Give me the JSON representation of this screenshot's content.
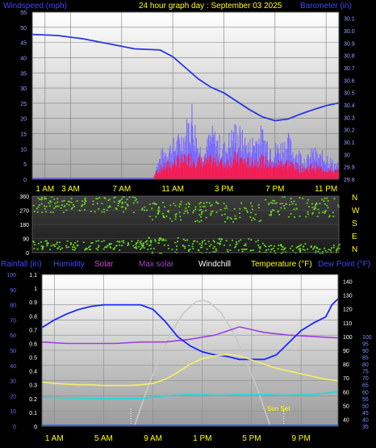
{
  "header": {
    "left_label": "Windspeed (mph)",
    "center_label": "24 hour graph day : September 03 2025",
    "right_label": "Barometer (in)"
  },
  "panel_top": {
    "x_ticks": [
      "1 AM",
      "3 AM",
      "7 AM",
      "11 AM",
      "3 PM",
      "7 PM",
      "11 PM"
    ],
    "x_tick_hours": [
      1,
      3,
      7,
      11,
      15,
      19,
      23
    ],
    "wind_ticks": [
      0,
      5,
      10,
      15,
      20,
      25,
      30,
      35,
      40,
      45,
      50,
      55
    ],
    "baro_ticks": [
      "29.8",
      "29.9",
      "30",
      "30.1",
      "30.2",
      "30.3",
      "30.4",
      "30.5",
      "30.6",
      "30.7",
      "30.8",
      "30.9",
      "30.0",
      "30.1"
    ]
  },
  "panel_dir": {
    "deg_ticks": [
      0,
      90,
      180,
      270,
      360
    ],
    "compass": [
      "N",
      "W",
      "S",
      "E",
      "N"
    ]
  },
  "panel_bottom": {
    "legend": {
      "rain": "Rainfall (in)",
      "humidity": "Humidity",
      "solar": "Solar",
      "max_solar": "Max solar",
      "windchill": "Windchill",
      "temperature": "Temperature (°F)",
      "dew_point": "Dew Point (°F)"
    },
    "x_ticks": [
      "1 AM",
      "5 AM",
      "9 AM",
      "1 PM",
      "5 PM",
      "9 PM"
    ],
    "x_tick_hours": [
      1,
      5,
      9,
      13,
      17,
      21
    ],
    "humidity_ticks": [
      0,
      10,
      20,
      30,
      40,
      50,
      60,
      70,
      80,
      90,
      100
    ],
    "rain_ticks": [
      "0",
      "0.1",
      "0.2",
      "0.3",
      "0.4",
      "0.5",
      "0.6",
      "0.7",
      "0.8",
      "0.9",
      "1",
      "1.1"
    ],
    "temp_ticks": [
      40,
      50,
      60,
      70,
      80,
      90,
      100,
      110,
      120,
      130,
      140
    ],
    "dew_ticks": [
      35,
      40,
      45,
      50,
      55,
      60,
      65,
      70,
      75,
      80,
      85,
      90,
      95,
      100
    ],
    "sunset_label": "Sun Set"
  },
  "colors": {
    "wind_avg": "#ff1744",
    "wind_gust": "#7a6aff",
    "barometer": "#2a35e0",
    "humidity": "#1a28ff",
    "temperature": "#f4f06a",
    "dew_point": "#22d8d8",
    "windchill": "#9a40e0",
    "solar_fill": "#ffb000",
    "max_solar": "#c8c8c8",
    "direction": "#66dd22",
    "label_yellow": "#ffff00",
    "label_blue": "#4444ff"
  },
  "chart_data": [
    {
      "type": "line",
      "title": "24 hour graph day : September 03 2025",
      "ylabel": "Windspeed (mph)",
      "y2label": "Barometer (in)",
      "xlim": [
        0,
        24
      ],
      "ylim": [
        0,
        55
      ],
      "y2lim": [
        29.8,
        30.1
      ],
      "grid": true,
      "series": [
        {
          "name": "Barometer (in)",
          "axis": "y2",
          "x": [
            0,
            2,
            4,
            6,
            8,
            10,
            11,
            12,
            13,
            14,
            15,
            16,
            17,
            18,
            19,
            20,
            21,
            22,
            23,
            24
          ],
          "values": [
            30.06,
            30.058,
            30.052,
            30.043,
            30.034,
            30.032,
            30.02,
            30.0,
            29.98,
            29.965,
            29.955,
            29.94,
            29.925,
            29.912,
            29.905,
            29.908,
            29.917,
            29.925,
            29.932,
            29.937
          ]
        },
        {
          "name": "Wind gust (mph)",
          "axis": "y",
          "x": [
            0,
            7.5,
            9.5,
            9.6,
            10,
            10.5,
            11,
            11.5,
            12,
            12.5,
            13,
            13.5,
            14,
            14.5,
            15,
            15.5,
            16,
            16.5,
            17,
            17.5,
            18,
            18.5,
            19,
            19.5,
            20,
            20.5,
            21,
            21.5,
            22,
            22.5,
            23,
            23.5,
            24
          ],
          "values": [
            0,
            0,
            0,
            3,
            8,
            11,
            12,
            14,
            17,
            24,
            12,
            10,
            16,
            14,
            11,
            15,
            18,
            14,
            12,
            15,
            16,
            13,
            11,
            12,
            14,
            10,
            9,
            7,
            10,
            8,
            9,
            6,
            5
          ]
        },
        {
          "name": "Wind average (mph)",
          "axis": "y",
          "x": [
            0,
            9.5,
            9.6,
            10,
            10.5,
            11,
            11.5,
            12,
            12.5,
            13,
            13.5,
            14,
            14.5,
            15,
            15.5,
            16,
            16.5,
            17,
            17.5,
            18,
            18.5,
            19,
            19.5,
            20,
            20.5,
            21,
            21.5,
            22,
            22.5,
            23,
            23.5,
            24
          ],
          "values": [
            0,
            0,
            2,
            4,
            5,
            6,
            7,
            7,
            8,
            7,
            6,
            7,
            7,
            6,
            7,
            8,
            7,
            6,
            7,
            7,
            6,
            5,
            6,
            6,
            5,
            4,
            4,
            5,
            4,
            4,
            3,
            3
          ]
        }
      ]
    },
    {
      "type": "scatter",
      "ylabel": "Wind direction (deg)",
      "xlim": [
        0,
        24
      ],
      "ylim": [
        0,
        360
      ],
      "bands": [
        {
          "hours": [
            0,
            9
          ],
          "deg_min": 260,
          "deg_max": 360
        },
        {
          "hours": [
            0,
            9
          ],
          "deg_min": 20,
          "deg_max": 80
        },
        {
          "hours": [
            9,
            18
          ],
          "deg_min": 200,
          "deg_max": 330
        },
        {
          "hours": [
            9,
            18
          ],
          "deg_min": 0,
          "deg_max": 100
        },
        {
          "hours": [
            18,
            24
          ],
          "deg_min": 230,
          "deg_max": 360
        },
        {
          "hours": [
            18,
            24
          ],
          "deg_min": 0,
          "deg_max": 60
        }
      ]
    },
    {
      "type": "line",
      "xlim": [
        0,
        24
      ],
      "humidity_lim": [
        0,
        100
      ],
      "temp_lim": [
        35,
        145
      ],
      "rain_lim": [
        0,
        1.1
      ],
      "series": [
        {
          "name": "Humidity",
          "x": [
            0,
            1,
            2,
            3,
            4,
            5,
            6,
            7,
            8,
            9,
            10,
            11,
            12,
            13,
            14,
            15,
            16,
            17,
            18,
            19,
            20,
            21,
            22,
            23,
            23.5,
            24
          ],
          "values": [
            65,
            70,
            74,
            77,
            79,
            80,
            80,
            80,
            80,
            77,
            69,
            59,
            53,
            49,
            47,
            46,
            44,
            44,
            44,
            47,
            55,
            63,
            68,
            72,
            80,
            84
          ]
        },
        {
          "name": "Temperature (°F)",
          "x": [
            0,
            1,
            2,
            3,
            4,
            5,
            6,
            7,
            8,
            9,
            10,
            11,
            12,
            13,
            14,
            15,
            16,
            17,
            18,
            19,
            20,
            21,
            22,
            23,
            24
          ],
          "values": [
            67,
            66,
            65.5,
            65,
            65,
            64.5,
            64.5,
            64.5,
            65,
            66,
            69,
            74,
            80,
            84,
            86,
            87,
            86,
            83,
            80,
            77,
            75,
            73,
            71,
            69,
            68
          ]
        },
        {
          "name": "Dew Point (°F)",
          "x": [
            0,
            2,
            4,
            6,
            8,
            9,
            10,
            11,
            12,
            13,
            14,
            15,
            16,
            17,
            18,
            19,
            20,
            21,
            22,
            23,
            24
          ],
          "values": [
            56,
            55.5,
            55,
            55,
            55,
            56,
            57,
            57.5,
            58,
            58,
            57.5,
            57.5,
            58,
            58,
            58,
            57.5,
            57.5,
            58,
            58,
            59,
            60
          ]
        },
        {
          "name": "Windchill",
          "x": [
            0,
            2,
            4,
            6,
            8,
            10,
            12,
            14,
            15,
            16,
            17,
            18,
            20,
            22,
            24
          ],
          "values": [
            96,
            95,
            95,
            95,
            96,
            96,
            98,
            101,
            104,
            107,
            105,
            103,
            101,
            100,
            99
          ]
        },
        {
          "name": "Max solar",
          "x": [
            7.5,
            8.5,
            9.5,
            10.5,
            11.5,
            12.5,
            13.0,
            13.5,
            14.5,
            15.5,
            16.5,
            17.5,
            18.5
          ],
          "values": [
            0,
            24,
            44,
            62,
            75,
            82,
            83,
            82,
            75,
            62,
            44,
            24,
            0
          ]
        },
        {
          "name": "Solar",
          "x": [
            7.8,
            9,
            10,
            10.5,
            11,
            11.5,
            12,
            12.2,
            12.5,
            12.8,
            13.2,
            13.6,
            14,
            14.5,
            15,
            15.5,
            16,
            16.3,
            16.6,
            17
          ],
          "values": [
            0,
            4,
            7,
            10,
            15,
            55,
            68,
            78,
            70,
            84,
            62,
            86,
            55,
            48,
            65,
            40,
            45,
            10,
            5,
            0
          ]
        },
        {
          "name": "Rainfall (in)",
          "x": [
            0,
            24
          ],
          "values": [
            0,
            0
          ]
        }
      ]
    }
  ]
}
